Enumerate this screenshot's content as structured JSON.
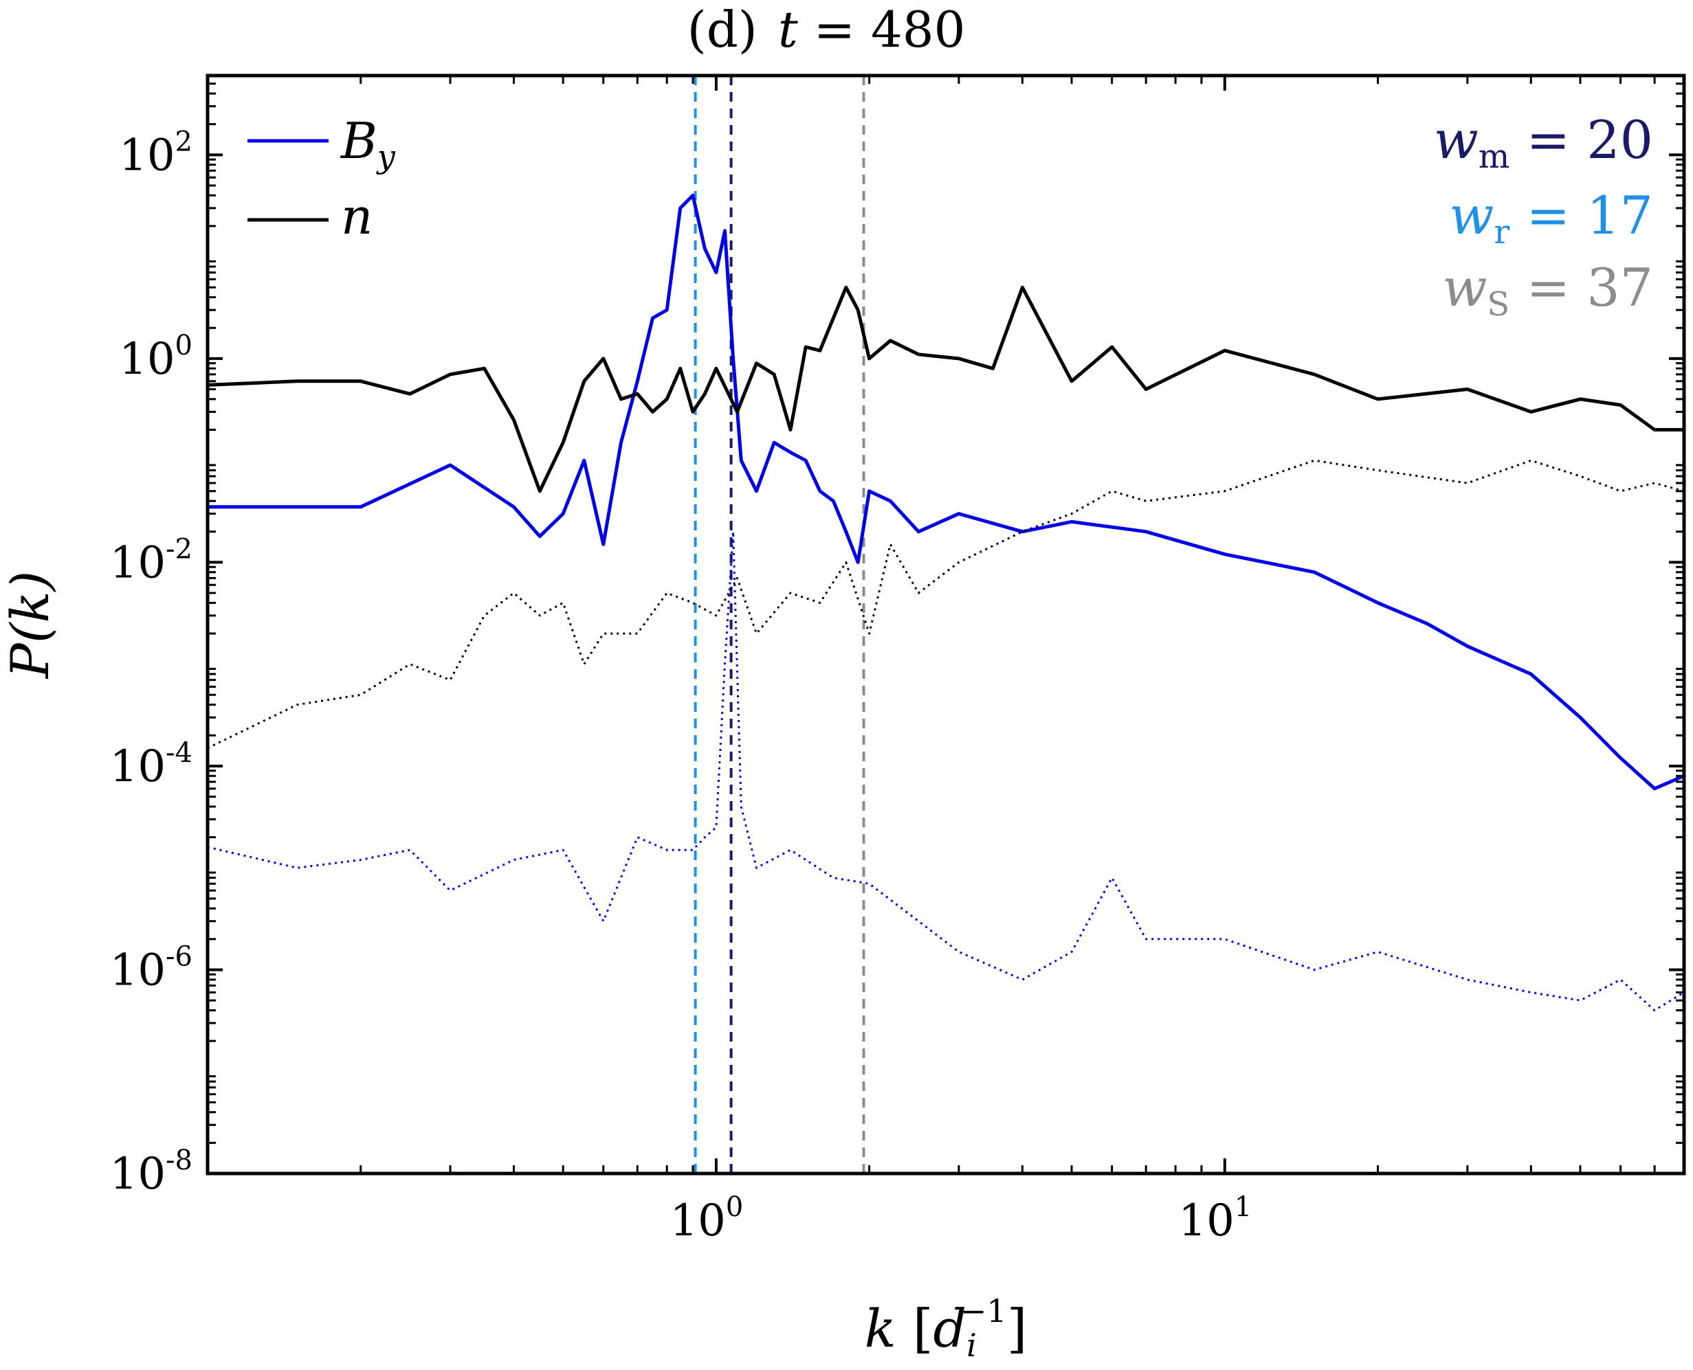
{
  "chart_data": {
    "type": "line",
    "title": "(d)  t = 480",
    "title_parts": {
      "panel": "(d)",
      "var": "t",
      "eq": " = 480"
    },
    "xlabel": "k [d_i^-1]",
    "xlabel_parts": {
      "var": "k",
      "open": " [",
      "base": "d",
      "sub": "i",
      "sup": "−1",
      "close": "]"
    },
    "ylabel": "P(k)",
    "xscale": "log",
    "yscale": "log",
    "xlim": [
      0.1,
      80
    ],
    "ylim": [
      1e-08,
      600
    ],
    "xticks": [
      {
        "base": "10",
        "exp": "0",
        "value": 1
      },
      {
        "base": "10",
        "exp": "1",
        "value": 10
      }
    ],
    "yticks": [
      {
        "base": "10",
        "exp": "2",
        "value": 100
      },
      {
        "base": "10",
        "exp": "0",
        "value": 1
      },
      {
        "base": "10",
        "exp": "-2",
        "value": 0.01
      },
      {
        "base": "10",
        "exp": "-4",
        "value": 0.0001
      },
      {
        "base": "10",
        "exp": "-6",
        "value": 1e-06
      },
      {
        "base": "10",
        "exp": "-8",
        "value": 1e-08
      }
    ],
    "legend": [
      {
        "label": "B_y",
        "base": "B",
        "sub": "y",
        "color": "#0000e6"
      },
      {
        "label": "n",
        "base": "n",
        "sub": "",
        "color": "#000000"
      }
    ],
    "annotations": [
      {
        "label": "w_m = 20",
        "base": "w",
        "sub": "m",
        "rest": " = 20",
        "color": "#1a1a66"
      },
      {
        "label": "w_r = 17",
        "base": "w",
        "sub": "r",
        "rest": " = 17",
        "color": "#1e90e6"
      },
      {
        "label": "w_S = 37",
        "base": "w",
        "sub": "S",
        "rest": " = 37",
        "color": "#8c8c8c"
      }
    ],
    "vlines": [
      {
        "x": 0.91,
        "color": "#1e90e6",
        "name": "w_r"
      },
      {
        "x": 1.07,
        "color": "#1a1a66",
        "name": "w_m"
      },
      {
        "x": 1.95,
        "color": "#8c8c8c",
        "name": "w_S"
      }
    ],
    "series": [
      {
        "name": "B_y (solid)",
        "color": "#0000e6",
        "style": "solid",
        "x": [
          0.1,
          0.2,
          0.3,
          0.4,
          0.45,
          0.5,
          0.55,
          0.6,
          0.65,
          0.7,
          0.75,
          0.8,
          0.85,
          0.9,
          0.95,
          1.0,
          1.04,
          1.08,
          1.12,
          1.2,
          1.3,
          1.4,
          1.5,
          1.6,
          1.7,
          1.8,
          1.9,
          2.0,
          2.2,
          2.5,
          3,
          4,
          5,
          7,
          10,
          15,
          20,
          25,
          30,
          40,
          50,
          60,
          70,
          80
        ],
        "values": [
          0.035,
          0.035,
          0.09,
          0.035,
          0.018,
          0.03,
          0.1,
          0.015,
          0.15,
          0.6,
          2.5,
          3,
          30,
          40,
          12,
          7,
          18,
          1,
          0.1,
          0.05,
          0.15,
          0.12,
          0.1,
          0.05,
          0.04,
          0.02,
          0.01,
          0.05,
          0.04,
          0.02,
          0.03,
          0.02,
          0.025,
          0.02,
          0.012,
          0.008,
          0.004,
          0.0025,
          0.0015,
          0.0008,
          0.0003,
          0.00012,
          6e-05,
          8e-05
        ]
      },
      {
        "name": "n (solid)",
        "color": "#000000",
        "style": "solid",
        "x": [
          0.1,
          0.15,
          0.2,
          0.25,
          0.3,
          0.35,
          0.4,
          0.45,
          0.5,
          0.55,
          0.6,
          0.65,
          0.7,
          0.75,
          0.8,
          0.85,
          0.9,
          0.95,
          1.0,
          1.1,
          1.2,
          1.3,
          1.4,
          1.5,
          1.6,
          1.7,
          1.8,
          1.9,
          2.0,
          2.2,
          2.5,
          3,
          3.5,
          4,
          5,
          6,
          7,
          10,
          15,
          20,
          30,
          40,
          50,
          60,
          70,
          80
        ],
        "values": [
          0.55,
          0.6,
          0.6,
          0.45,
          0.7,
          0.8,
          0.25,
          0.05,
          0.15,
          0.6,
          1,
          0.4,
          0.45,
          0.3,
          0.4,
          0.8,
          0.3,
          0.45,
          0.8,
          0.3,
          0.9,
          0.7,
          0.2,
          1.3,
          1.2,
          2.5,
          5,
          3,
          1,
          1.5,
          1.1,
          1,
          0.8,
          5,
          0.6,
          1.3,
          0.5,
          1.2,
          0.7,
          0.4,
          0.5,
          0.3,
          0.4,
          0.35,
          0.2,
          0.2
        ]
      },
      {
        "name": "B_y (dotted)",
        "color": "#0000e6",
        "style": "dotted",
        "x": [
          0.1,
          0.15,
          0.2,
          0.25,
          0.3,
          0.4,
          0.5,
          0.6,
          0.7,
          0.8,
          0.9,
          0.95,
          1.0,
          1.04,
          1.08,
          1.12,
          1.2,
          1.4,
          1.7,
          2.0,
          2.5,
          3,
          4,
          5,
          6,
          7,
          10,
          15,
          20,
          30,
          40,
          50,
          60,
          70,
          80
        ],
        "values": [
          1.6e-05,
          1e-05,
          1.2e-05,
          1.5e-05,
          6e-06,
          1.2e-05,
          1.5e-05,
          3e-06,
          2e-05,
          1.5e-05,
          1.5e-05,
          2e-05,
          2.5e-05,
          0.001,
          0.02,
          4e-05,
          1e-05,
          1.5e-05,
          8e-06,
          7e-06,
          3e-06,
          1.5e-06,
          8e-07,
          1.5e-06,
          8e-06,
          2e-06,
          2e-06,
          1e-06,
          1.5e-06,
          8e-07,
          6e-07,
          5e-07,
          8e-07,
          4e-07,
          6e-07
        ]
      },
      {
        "name": "n (dotted)",
        "color": "#000000",
        "style": "dotted",
        "x": [
          0.1,
          0.15,
          0.2,
          0.25,
          0.3,
          0.35,
          0.4,
          0.45,
          0.5,
          0.55,
          0.6,
          0.7,
          0.8,
          0.9,
          1.0,
          1.1,
          1.2,
          1.4,
          1.6,
          1.8,
          2.0,
          2.2,
          2.5,
          3,
          4,
          5,
          6,
          7,
          10,
          15,
          20,
          30,
          40,
          50,
          60,
          70,
          80
        ],
        "values": [
          0.00015,
          0.0004,
          0.0005,
          0.001,
          0.0007,
          0.003,
          0.005,
          0.003,
          0.004,
          0.001,
          0.002,
          0.002,
          0.005,
          0.004,
          0.003,
          0.007,
          0.002,
          0.005,
          0.004,
          0.01,
          0.002,
          0.015,
          0.005,
          0.01,
          0.02,
          0.03,
          0.05,
          0.04,
          0.05,
          0.1,
          0.08,
          0.06,
          0.1,
          0.07,
          0.05,
          0.06,
          0.05
        ]
      }
    ]
  }
}
